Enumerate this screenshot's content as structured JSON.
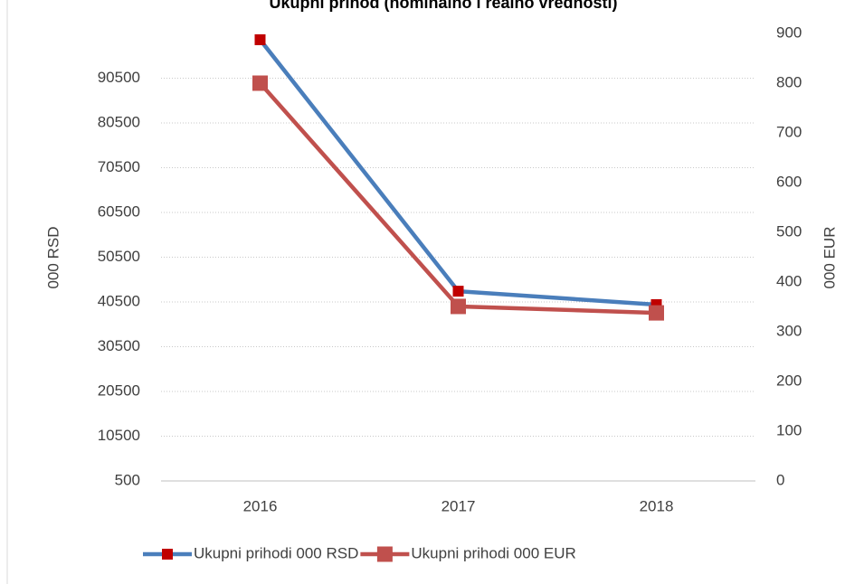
{
  "chart_data": {
    "type": "line",
    "title": "Ukupni prihod (nominalno i realno vrednosti)",
    "y_label": "000 RSD",
    "y2_label": "000 EUR",
    "categories": [
      "2016",
      "2017",
      "2018"
    ],
    "series": [
      {
        "name": "Ukupni prihodi 000 RSD",
        "color": "#4a7ebb",
        "marker_color": "#c00000",
        "values": [
          99100,
          42900,
          39900
        ]
      },
      {
        "name": "Ukupni prihodi 000 EUR",
        "color": "#c0504d",
        "marker_color": "#c0504d",
        "axis": "y2",
        "values": [
          800,
          351,
          338
        ]
      }
    ],
    "ylim": [
      500,
      100500
    ],
    "yticks": [
      500,
      10500,
      20500,
      30500,
      40500,
      50500,
      60500,
      70500,
      80500,
      90500
    ],
    "y2lim": [
      0,
      900
    ],
    "y2ticks": [
      0,
      100,
      200,
      300,
      400,
      500,
      600,
      700,
      800,
      900
    ],
    "grid": true,
    "legend": "bottom"
  }
}
